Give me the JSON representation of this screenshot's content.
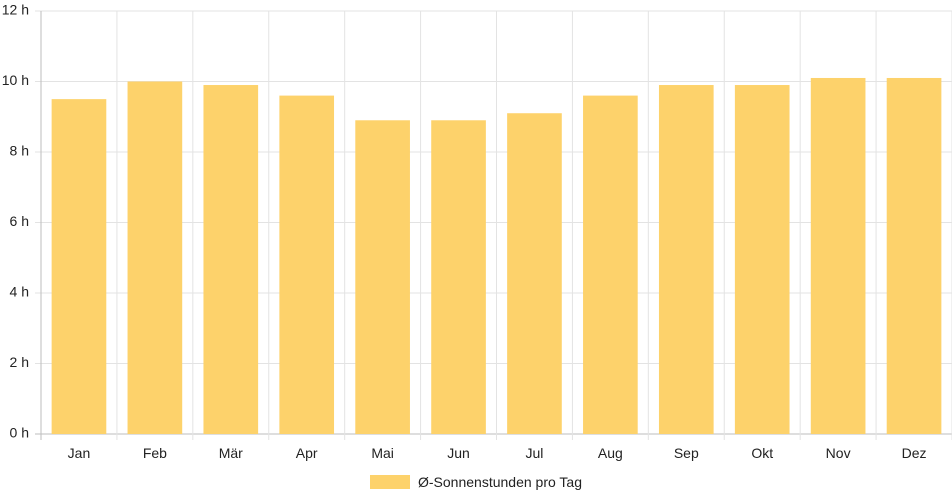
{
  "chart_data": {
    "type": "bar",
    "categories": [
      "Jan",
      "Feb",
      "Mär",
      "Apr",
      "Mai",
      "Jun",
      "Jul",
      "Aug",
      "Sep",
      "Okt",
      "Nov",
      "Dez"
    ],
    "series": [
      {
        "name": "Ø-Sonnenstunden pro Tag",
        "values": [
          9.5,
          10.0,
          9.9,
          9.6,
          8.9,
          8.9,
          9.1,
          9.6,
          9.9,
          9.9,
          10.1,
          10.1
        ],
        "color": "#fdd26b"
      }
    ],
    "ylim": [
      0,
      12
    ],
    "yticks": [
      "0 h",
      "2 h",
      "4 h",
      "6 h",
      "8 h",
      "10 h",
      "12 h"
    ],
    "xlabel": "",
    "ylabel": "",
    "grid": true,
    "legend_position": "bottom"
  }
}
